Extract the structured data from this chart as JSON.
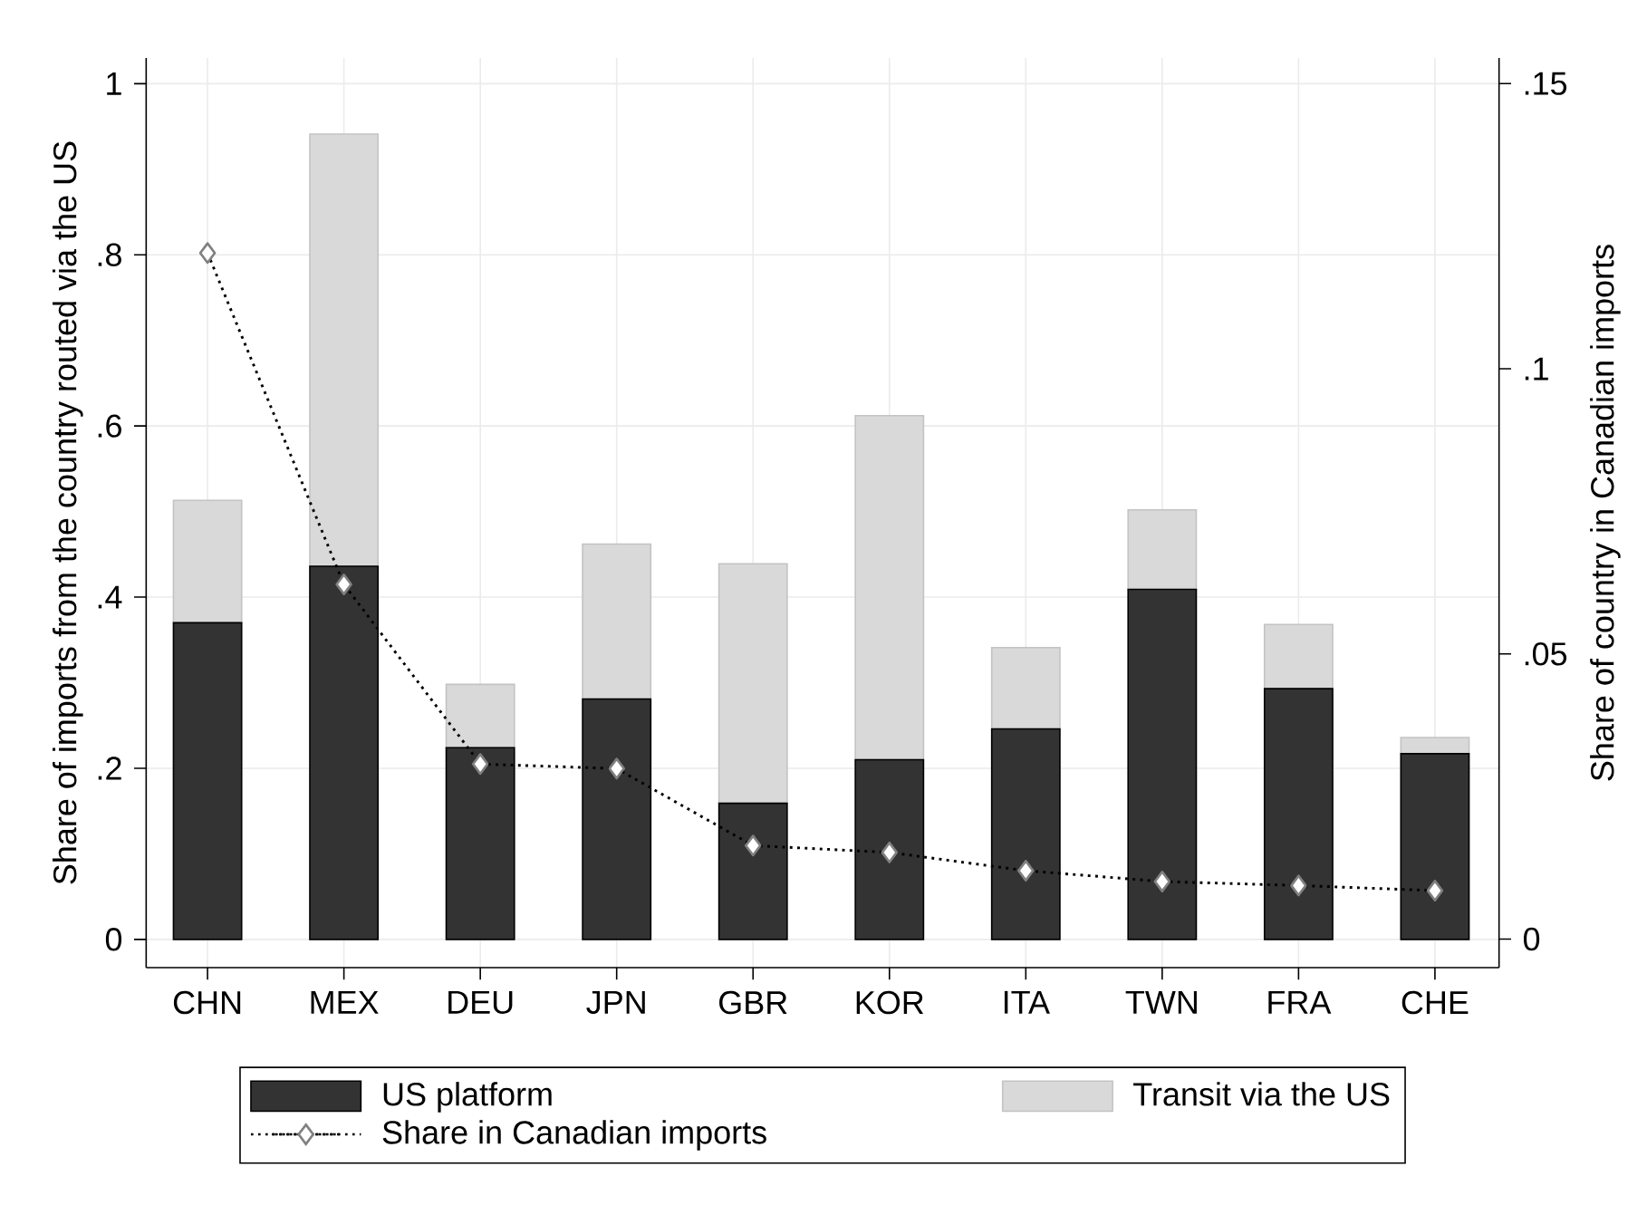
{
  "chart_data": {
    "type": "bar",
    "stacked": true,
    "ylabel": "Share of imports from the country routed via the US",
    "y2label": "Share of country in Canadian imports",
    "categories": [
      "CHN",
      "MEX",
      "DEU",
      "JPN",
      "GBR",
      "KOR",
      "ITA",
      "TWN",
      "FRA",
      "CHE"
    ],
    "series": [
      {
        "name": "US platform",
        "color": "#333333",
        "values": [
          0.37,
          0.436,
          0.224,
          0.281,
          0.159,
          0.21,
          0.246,
          0.409,
          0.293,
          0.217
        ]
      },
      {
        "name": "Transit via the US",
        "color": "#d9d9d9",
        "values": [
          0.143,
          0.505,
          0.074,
          0.181,
          0.28,
          0.402,
          0.095,
          0.093,
          0.075,
          0.019
        ]
      },
      {
        "name": "Share in Canadian imports",
        "type": "line",
        "axis": "y2",
        "color": "#000000",
        "values": [
          0.1203,
          0.0622,
          0.0307,
          0.0299,
          0.0164,
          0.0152,
          0.012,
          0.0101,
          0.0094,
          0.0085
        ]
      }
    ],
    "ylim": [
      -0.033,
      1.03
    ],
    "yticks": [
      0,
      {
        "value": 0.2,
        "label": ".2"
      },
      {
        "value": 0.4,
        "label": ".4"
      },
      {
        "value": 0.6,
        "label": ".6"
      },
      {
        "value": 0.8,
        "label": ".8"
      },
      1
    ],
    "y2lim": [
      -0.005,
      0.1545
    ],
    "y2ticks": [
      0,
      {
        "value": 0.05,
        "label": ".05"
      },
      {
        "value": 0.1,
        "label": ".1"
      },
      {
        "value": 0.15,
        "label": ".15"
      }
    ],
    "grid": true,
    "legend": "bottom",
    "marker": "diamond",
    "line_style": "dotted"
  }
}
